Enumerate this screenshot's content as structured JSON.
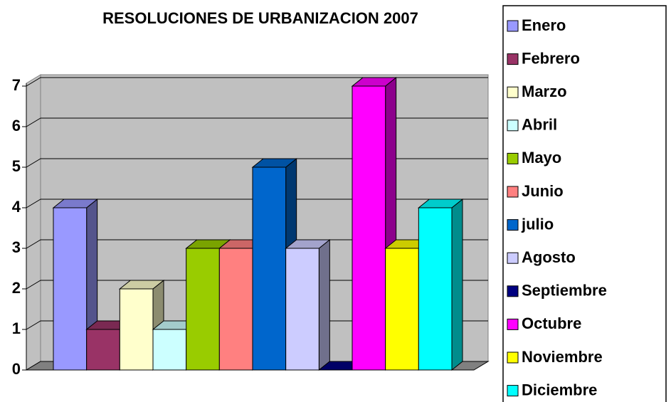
{
  "chart_data": {
    "type": "bar",
    "title": "RESOLUCIONES DE URBANIZACION 2007",
    "series": [
      {
        "name": "Enero",
        "color": "#9999ff",
        "values": [
          4
        ]
      },
      {
        "name": "Febrero",
        "color": "#993366",
        "values": [
          1
        ]
      },
      {
        "name": "Marzo",
        "color": "#ffffcc",
        "values": [
          2
        ]
      },
      {
        "name": "Abril",
        "color": "#ccffff",
        "values": [
          1
        ]
      },
      {
        "name": "Mayo",
        "color": "#99cc00",
        "values": [
          3
        ]
      },
      {
        "name": "Junio",
        "color": "#ff8080",
        "values": [
          3
        ]
      },
      {
        "name": "julio",
        "color": "#0066cc",
        "values": [
          5
        ]
      },
      {
        "name": "Agosto",
        "color": "#ccccff",
        "values": [
          3
        ]
      },
      {
        "name": "Septiembre",
        "color": "#000080",
        "values": [
          0
        ]
      },
      {
        "name": "Octubre",
        "color": "#ff00ff",
        "values": [
          7
        ]
      },
      {
        "name": "Noviembre",
        "color": "#ffff00",
        "values": [
          3
        ]
      },
      {
        "name": "Diciembre",
        "color": "#00ffff",
        "values": [
          4
        ]
      }
    ],
    "ylim": [
      0,
      7
    ],
    "yticks": [
      0,
      1,
      2,
      3,
      4,
      5,
      6,
      7
    ],
    "grid": true,
    "legend": "right"
  }
}
